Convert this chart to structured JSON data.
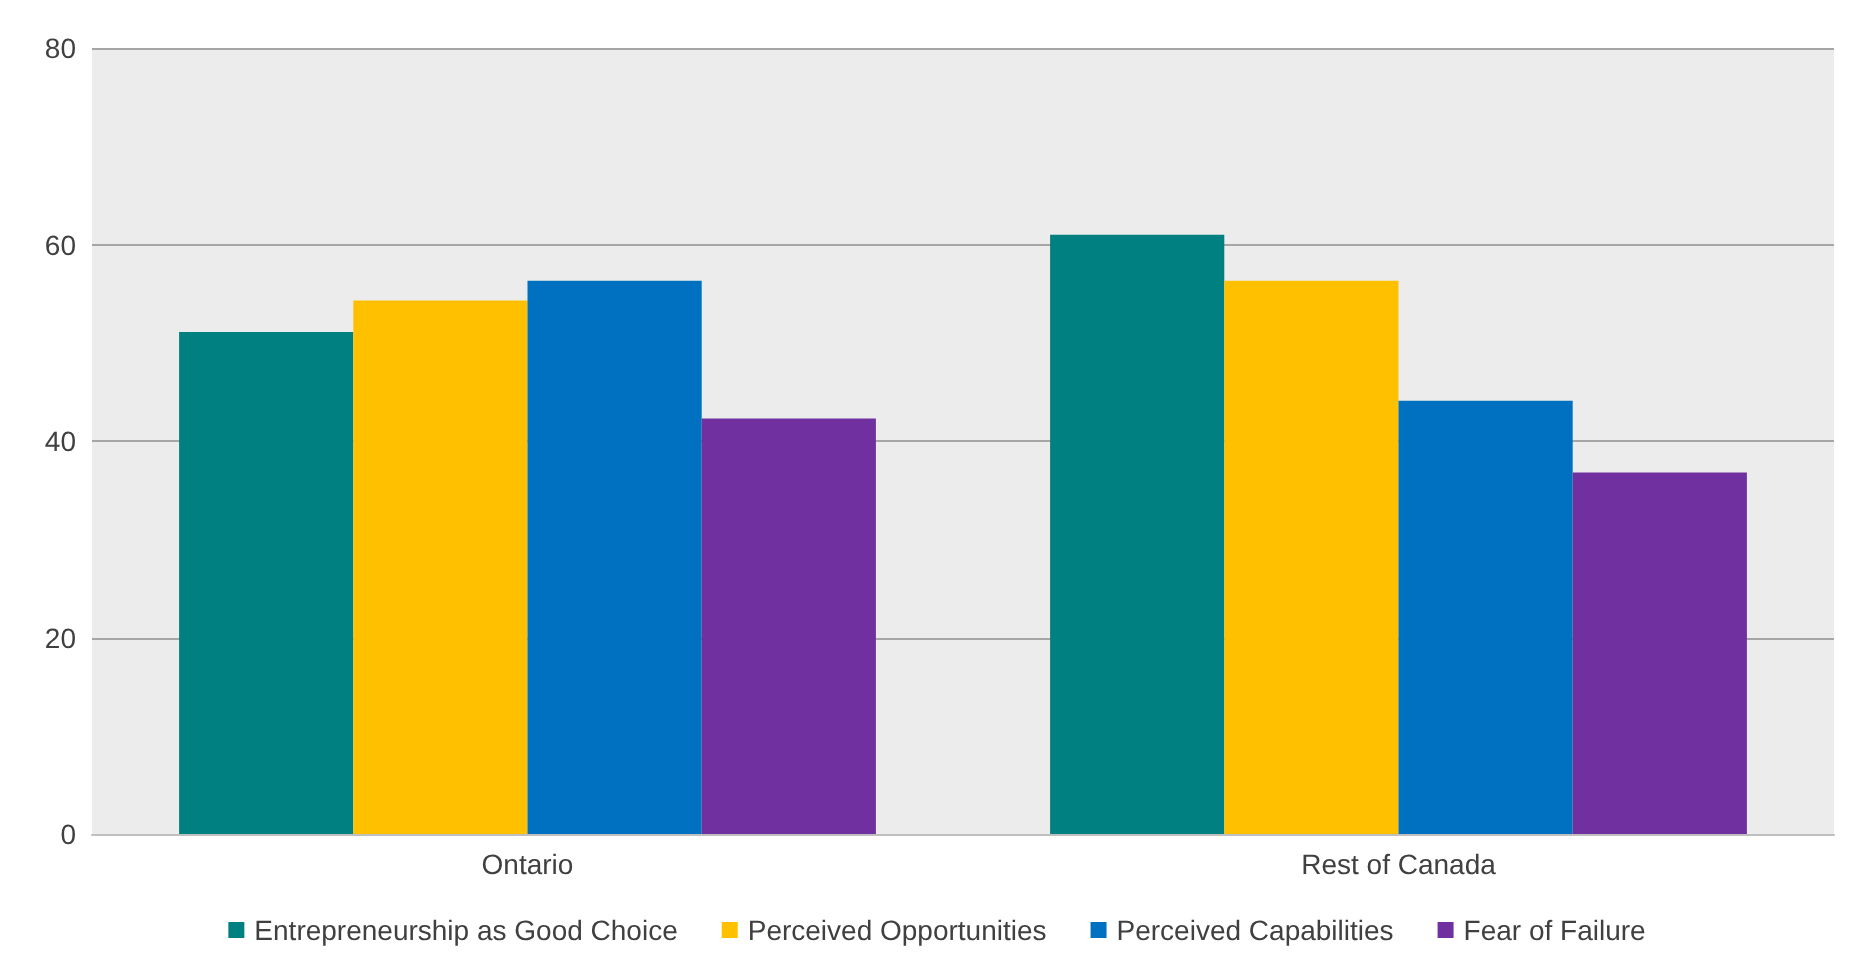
{
  "chart_data": {
    "type": "bar",
    "categories": [
      "Ontario",
      "Rest of Canada"
    ],
    "series": [
      {
        "name": "Entrepreneurship as Good Choice",
        "color": "#008080",
        "values": [
          51.1,
          61.0
        ]
      },
      {
        "name": "Perceived Opportunities",
        "color": "#ffc000",
        "values": [
          54.3,
          56.3
        ]
      },
      {
        "name": "Perceived Capabilities",
        "color": "#0070c0",
        "values": [
          56.3,
          44.1
        ]
      },
      {
        "name": "Fear of Failure",
        "color": "#7030a0",
        "values": [
          42.3,
          36.8
        ]
      }
    ],
    "ylim": [
      0,
      80
    ],
    "yticks": [
      0,
      20,
      40,
      60,
      80
    ],
    "grid": "y",
    "legend": "bottom"
  }
}
